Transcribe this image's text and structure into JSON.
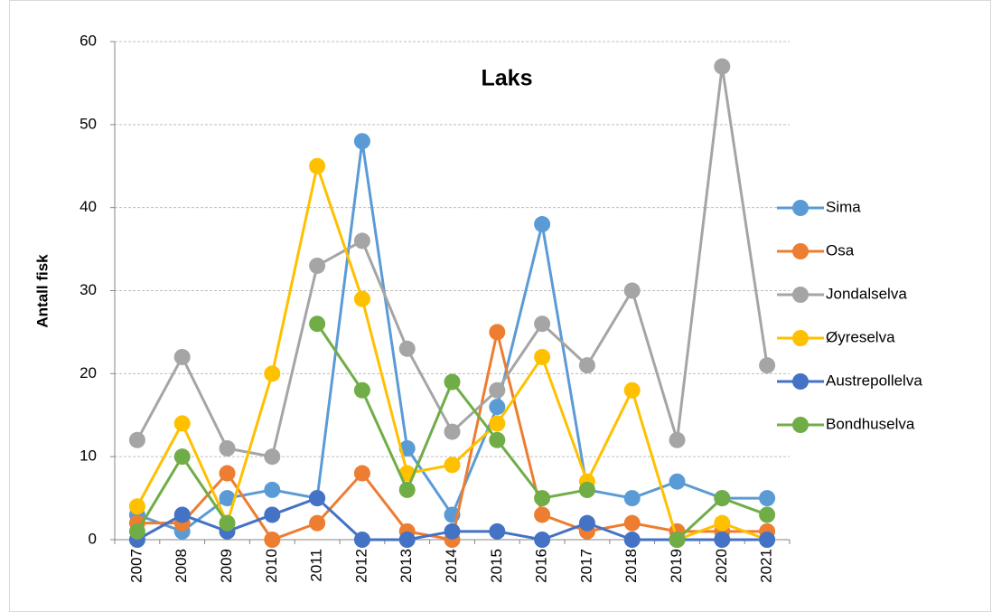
{
  "chart_data": {
    "type": "line",
    "title": "Laks",
    "y_label": "Antall fisk",
    "categories": [
      "2007",
      "2008",
      "2009",
      "2010",
      "2011",
      "2012",
      "2013",
      "2014",
      "2015",
      "2016",
      "2017",
      "2018",
      "2019",
      "2020",
      "2021"
    ],
    "series": [
      {
        "name": "Sima",
        "color": "#5b9bd5",
        "values": [
          3,
          1,
          5,
          6,
          5,
          48,
          11,
          3,
          16,
          38,
          6,
          5,
          7,
          5,
          5
        ]
      },
      {
        "name": "Osa",
        "color": "#ed7d31",
        "values": [
          2,
          2,
          8,
          0,
          2,
          8,
          1,
          0,
          25,
          3,
          1,
          2,
          1,
          1,
          1
        ]
      },
      {
        "name": "Jondalselva",
        "color": "#a5a5a5",
        "values": [
          12,
          22,
          11,
          10,
          33,
          36,
          23,
          13,
          18,
          26,
          21,
          30,
          12,
          57,
          21
        ]
      },
      {
        "name": "Øyreselva",
        "color": "#ffc000",
        "values": [
          4,
          14,
          2,
          20,
          45,
          29,
          8,
          9,
          14,
          22,
          7,
          18,
          0,
          2,
          0
        ]
      },
      {
        "name": "Austrepollelva",
        "color": "#4472c4",
        "values": [
          0,
          3,
          1,
          3,
          5,
          0,
          0,
          1,
          1,
          0,
          2,
          0,
          0,
          0,
          0
        ]
      },
      {
        "name": "Bondhuselva",
        "color": "#70ad47",
        "values": [
          1,
          10,
          2,
          null,
          26,
          18,
          6,
          19,
          12,
          5,
          6,
          null,
          0,
          5,
          3
        ]
      }
    ],
    "ylim": [
      0,
      60
    ],
    "yticks": [
      0,
      10,
      20,
      30,
      40,
      50,
      60
    ],
    "grid": true,
    "legend": "right"
  }
}
